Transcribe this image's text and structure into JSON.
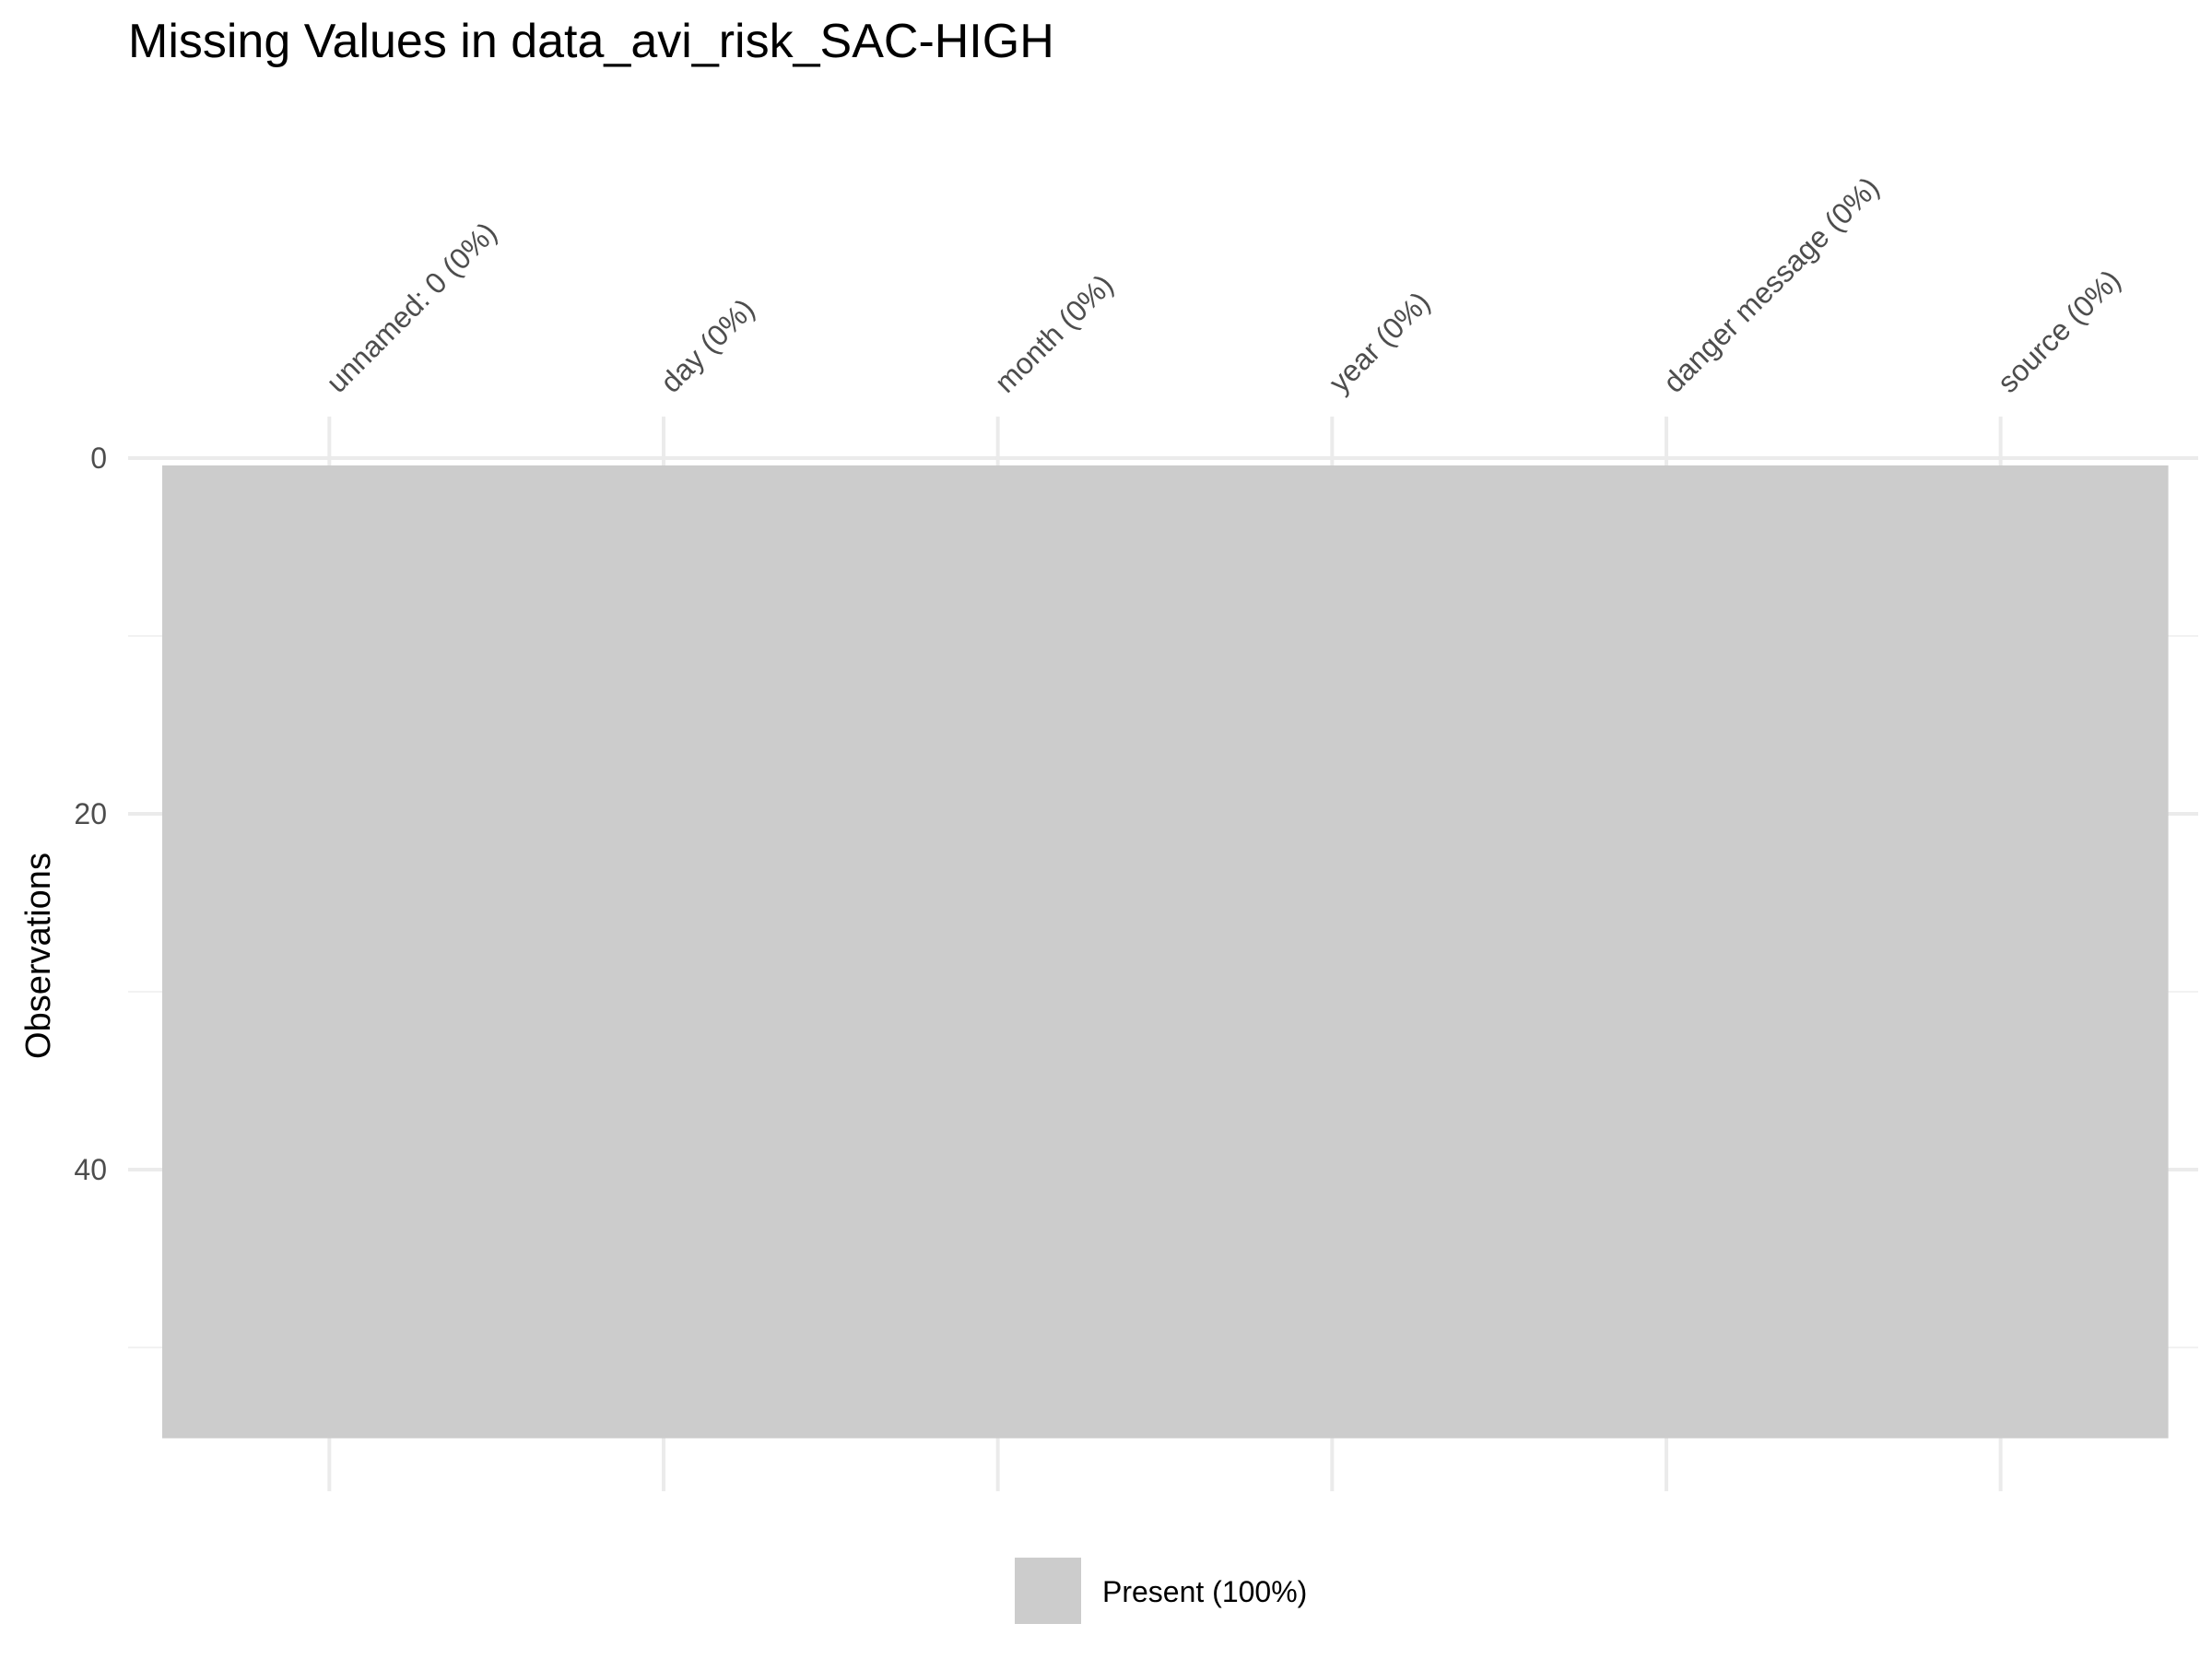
{
  "chart_data": {
    "type": "heatmap",
    "title": "Missing Values in data_avi_risk_SAC-HIGH",
    "xlabel": "",
    "ylabel": "Observations",
    "columns": [
      "unnamed: 0 (0%)",
      "day (0%)",
      "month (0%)",
      "year (0%)",
      "danger message (0%)",
      "source (0%)"
    ],
    "y_ticks": [
      0,
      20,
      40
    ],
    "ylim": [
      0,
      55
    ],
    "n_observations": 55,
    "cells": [
      {
        "column": "unnamed: 0 (0%)",
        "status": "Present",
        "from": 0,
        "to": 55
      },
      {
        "column": "day (0%)",
        "status": "Present",
        "from": 0,
        "to": 55
      },
      {
        "column": "month (0%)",
        "status": "Present",
        "from": 0,
        "to": 55
      },
      {
        "column": "year (0%)",
        "status": "Present",
        "from": 0,
        "to": 55
      },
      {
        "column": "danger message (0%)",
        "status": "Present",
        "from": 0,
        "to": 55
      },
      {
        "column": "source (0%)",
        "status": "Present",
        "from": 0,
        "to": 55
      }
    ],
    "legend": [
      {
        "label": "Present (100%)",
        "color": "#cccccc"
      }
    ],
    "legend_position": "bottom",
    "grid": true,
    "colors": {
      "present": "#cccccc"
    }
  }
}
